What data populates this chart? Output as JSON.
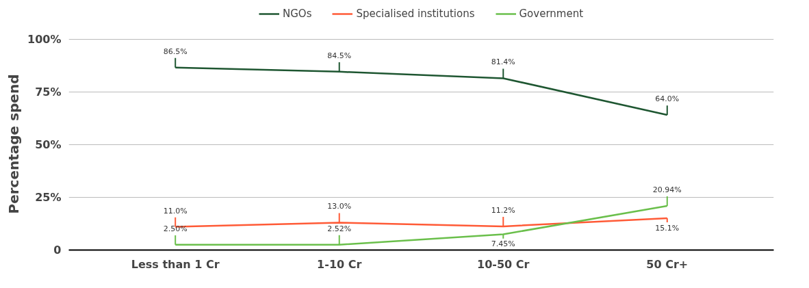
{
  "chart_data": {
    "type": "line",
    "ylabel": "Percentage spend",
    "categories": [
      "Less than 1 Cr",
      "1-10 Cr",
      "10-50 Cr",
      "50 Cr+"
    ],
    "series": [
      {
        "name": "NGOs",
        "color": "#1e5631",
        "values": [
          86.5,
          84.5,
          81.4,
          64.0
        ],
        "value_labels": [
          "86.5%",
          "84.5%",
          "81.4%",
          "64.0%"
        ]
      },
      {
        "name": "Specialised institutions",
        "color": "#ff5a36",
        "values": [
          11.0,
          13.0,
          11.2,
          15.1
        ],
        "value_labels": [
          "11.0%",
          "13.0%",
          "11.2%",
          "15.1%"
        ]
      },
      {
        "name": "Government",
        "color": "#6abf4b",
        "values": [
          2.5,
          2.52,
          7.45,
          20.94
        ],
        "value_labels": [
          "2.50%",
          "2.52%",
          "7.45%",
          "20.94%"
        ]
      }
    ],
    "ylim": [
      0,
      100
    ],
    "yticks": [
      {
        "value": 0,
        "label": "0"
      },
      {
        "value": 25,
        "label": "25%"
      },
      {
        "value": 50,
        "label": "50%"
      },
      {
        "value": 75,
        "label": "75%"
      },
      {
        "value": 100,
        "label": "100%"
      }
    ],
    "grid": "y",
    "legend": "top",
    "marker": "none",
    "line_style": "solid"
  }
}
